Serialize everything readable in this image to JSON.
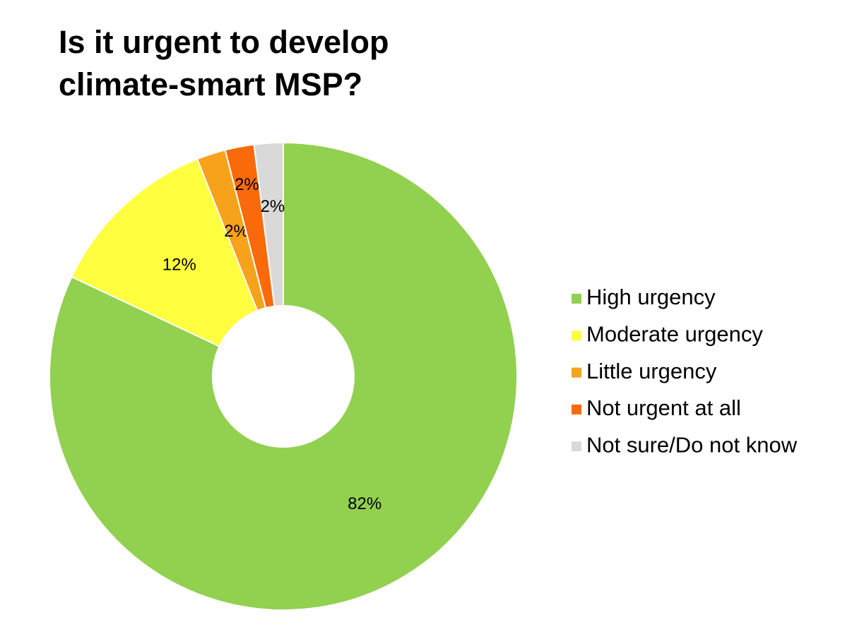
{
  "chart_data": {
    "type": "donut",
    "title": "Is it urgent to develop climate-smart MSP?",
    "categories": [
      "High urgency",
      "Moderate urgency",
      "Little urgency",
      "Not urgent at all",
      "Not sure/Do not know"
    ],
    "values": [
      82,
      12,
      2,
      2,
      2
    ],
    "value_labels": [
      "82%",
      "12%",
      "2%",
      "2%",
      "2%"
    ],
    "colors": [
      "#92d050",
      "#ffff40",
      "#f7a21b",
      "#fa6a0a",
      "#d9d9d9"
    ],
    "legend": "right"
  }
}
